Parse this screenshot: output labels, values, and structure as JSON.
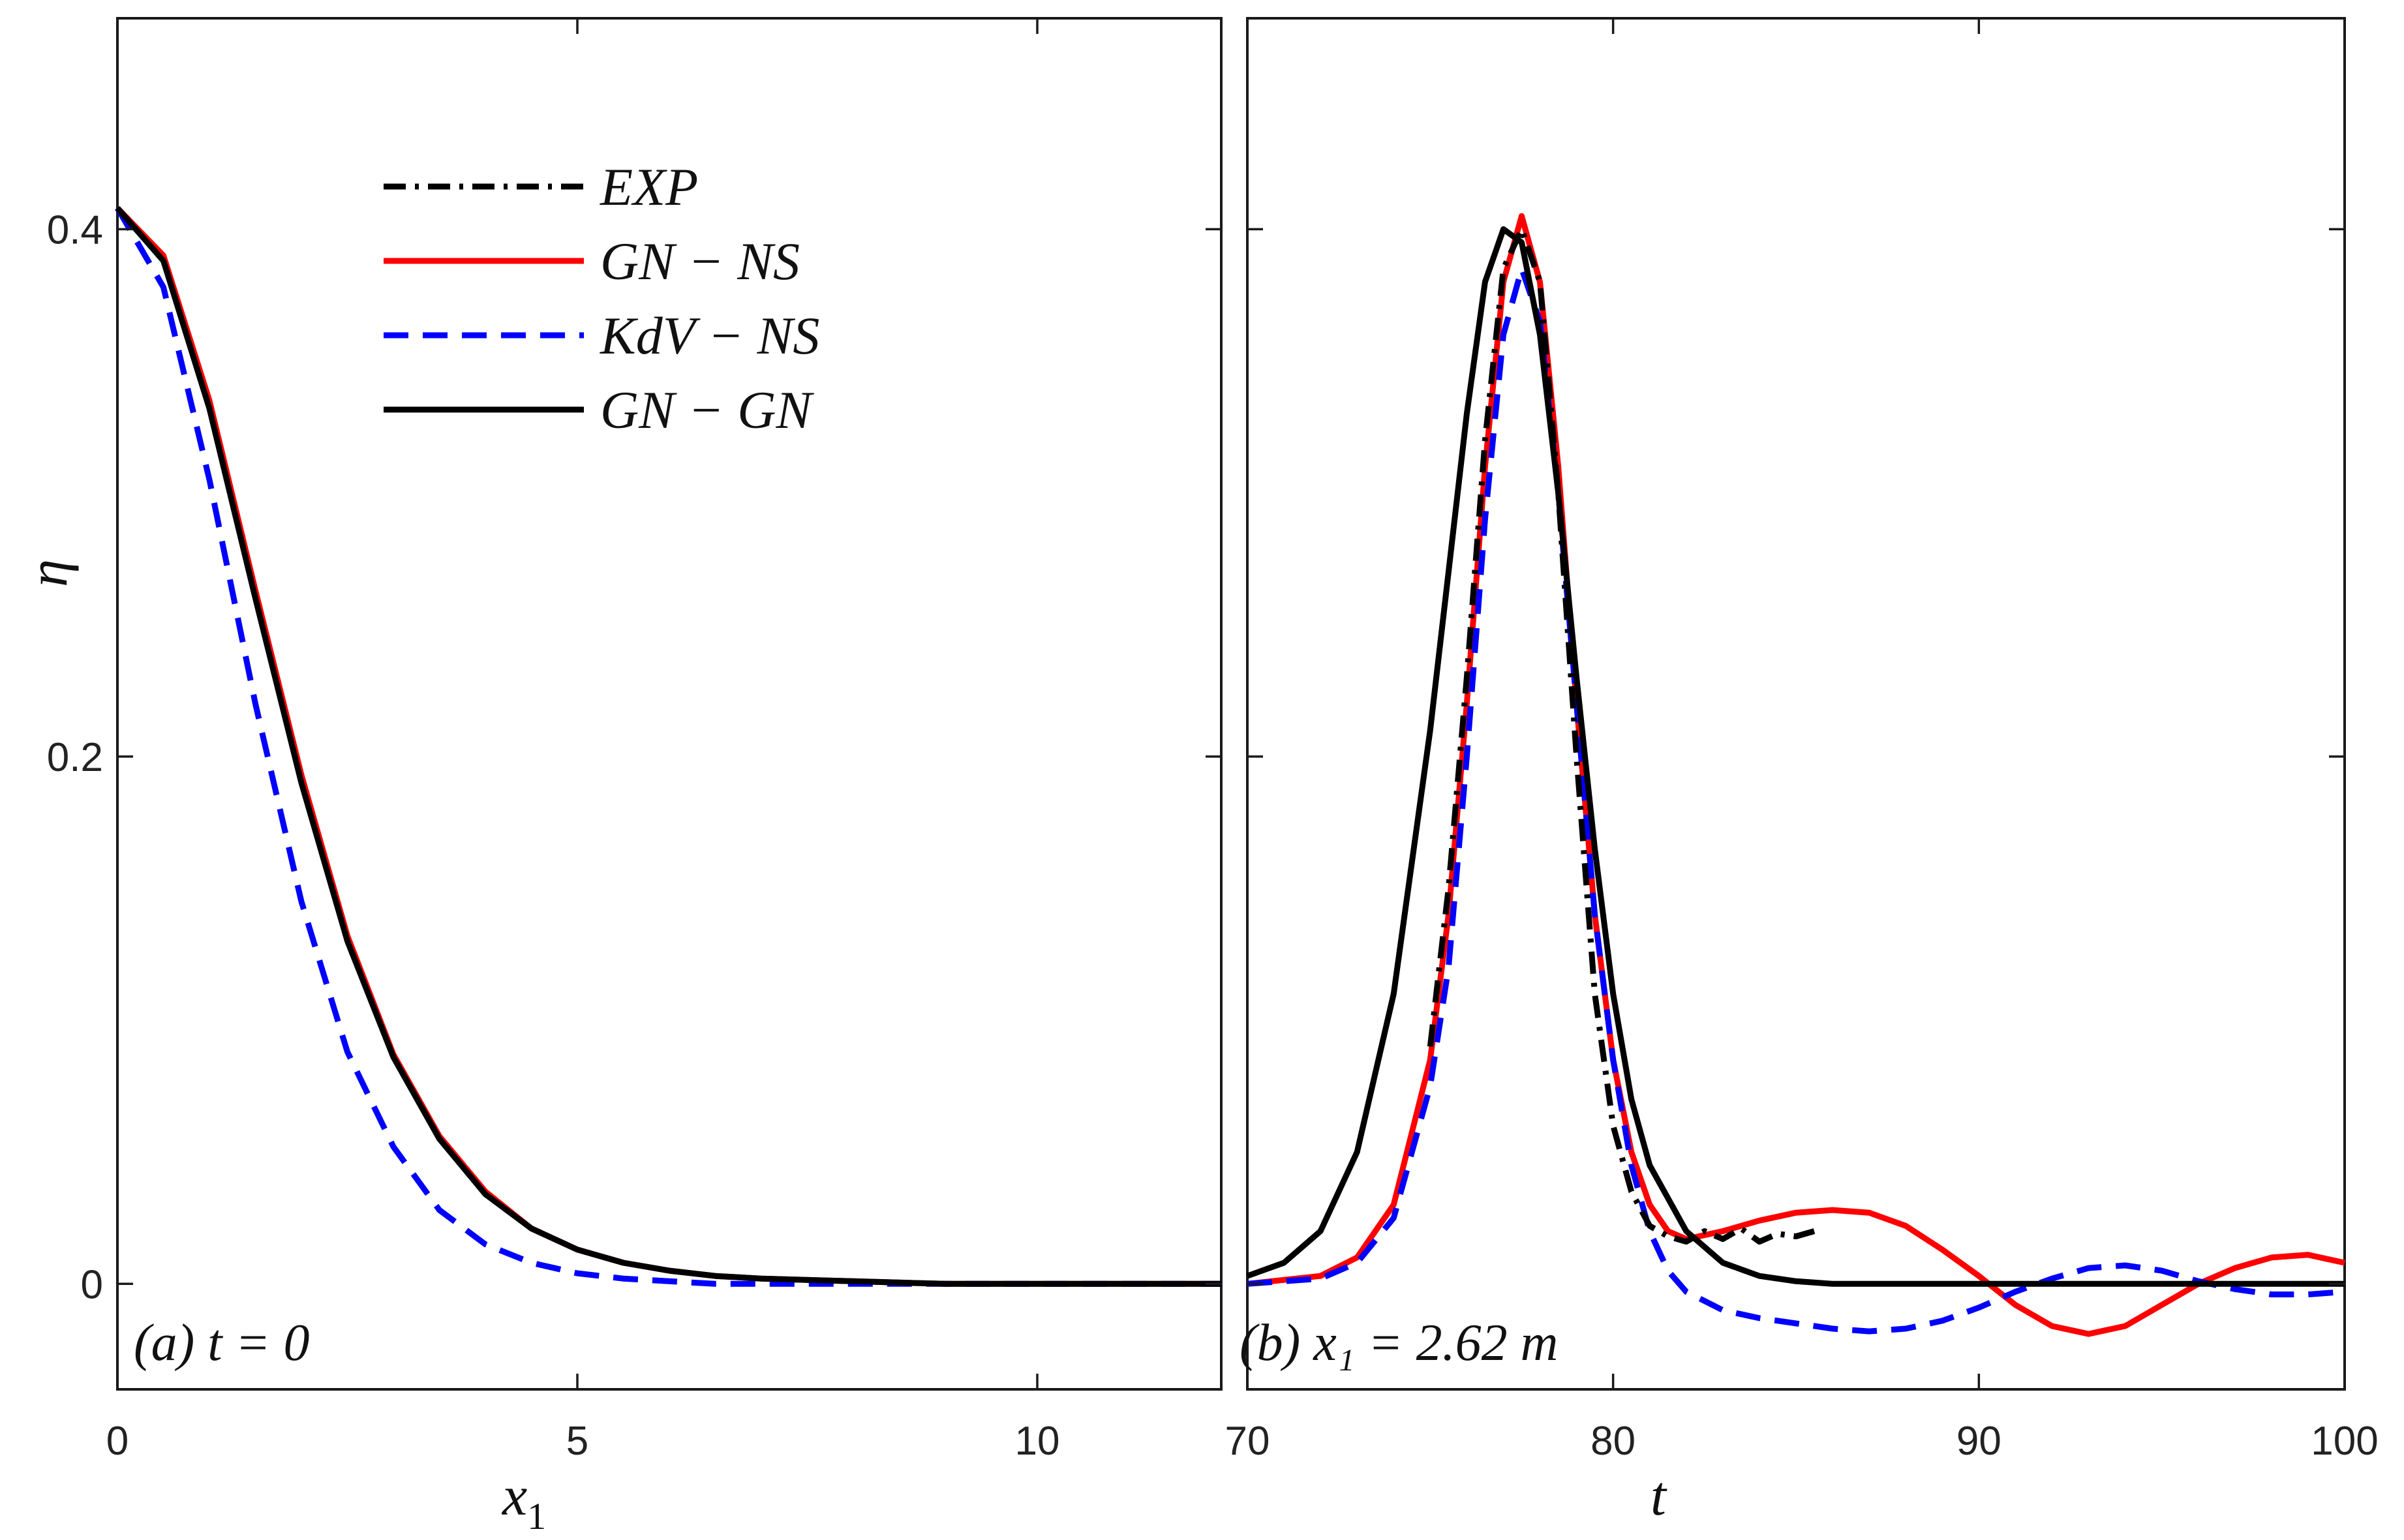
{
  "chart_data": [
    {
      "type": "line",
      "panel_label": "(a) t = 0",
      "xlabel": "x",
      "xlabel_sub": "1",
      "ylabel": "η",
      "xlim": [
        0,
        12
      ],
      "ylim": [
        -0.04,
        0.48
      ],
      "xticks": [
        {
          "value": 0,
          "label": "0"
        },
        {
          "value": 5,
          "label": "5"
        },
        {
          "value": 10,
          "label": "10"
        }
      ],
      "yticks": [
        {
          "value": 0,
          "label": "0"
        },
        {
          "value": 0.2,
          "label": "0.2"
        },
        {
          "value": 0.4,
          "label": "0.4"
        }
      ],
      "legend": [
        {
          "name": "EXP",
          "label": "EXP",
          "color": "#000000",
          "dash": "dashdot"
        },
        {
          "name": "GN-NS",
          "label": "GN − NS",
          "color": "#ff0000",
          "dash": "solid"
        },
        {
          "name": "KdV-NS",
          "label": "KdV − NS",
          "color": "#0000ff",
          "dash": "dashed"
        },
        {
          "name": "GN-GN",
          "label": "GN − GN",
          "color": "#000000",
          "dash": "solid"
        }
      ],
      "series": [
        {
          "name": "GN-NS",
          "color": "#ff0000",
          "dash": "solid",
          "x": [
            0,
            0.5,
            1,
            1.5,
            2,
            2.5,
            3,
            3.5,
            4,
            4.5,
            5,
            5.5,
            6,
            6.5,
            7,
            8,
            9,
            10,
            11,
            12
          ],
          "y": [
            0.408,
            0.39,
            0.335,
            0.263,
            0.193,
            0.132,
            0.087,
            0.056,
            0.035,
            0.021,
            0.013,
            0.008,
            0.005,
            0.003,
            0.002,
            0.001,
            0.0,
            0.0,
            0.0,
            0.0
          ]
        },
        {
          "name": "KdV-NS",
          "color": "#0000ff",
          "dash": "dashed",
          "x": [
            0,
            0.5,
            1,
            1.5,
            2,
            2.5,
            3,
            3.5,
            4,
            4.5,
            5,
            5.5,
            6,
            6.5,
            7,
            8,
            9,
            10,
            11,
            12
          ],
          "y": [
            0.408,
            0.378,
            0.305,
            0.22,
            0.145,
            0.088,
            0.052,
            0.028,
            0.015,
            0.008,
            0.004,
            0.002,
            0.001,
            0.0,
            0.0,
            0.0,
            0.0,
            0.0,
            0.0,
            0.0
          ]
        },
        {
          "name": "GN-GN",
          "color": "#000000",
          "dash": "solid",
          "x": [
            0,
            0.5,
            1,
            1.5,
            2,
            2.5,
            3,
            3.5,
            4,
            4.5,
            5,
            5.5,
            6,
            6.5,
            7,
            8,
            9,
            10,
            11,
            12
          ],
          "y": [
            0.408,
            0.388,
            0.332,
            0.26,
            0.19,
            0.13,
            0.086,
            0.055,
            0.034,
            0.021,
            0.013,
            0.008,
            0.005,
            0.003,
            0.002,
            0.001,
            0.0,
            0.0,
            0.0,
            0.0
          ]
        }
      ]
    },
    {
      "type": "line",
      "panel_label": "(b) x₁ = 2.62 m",
      "xlabel": "t",
      "xlim": [
        70,
        100
      ],
      "ylim": [
        -0.04,
        0.48
      ],
      "xticks": [
        {
          "value": 70,
          "label": "70"
        },
        {
          "value": 80,
          "label": "80"
        },
        {
          "value": 90,
          "label": "90"
        },
        {
          "value": 100,
          "label": "100"
        }
      ],
      "series": [
        {
          "name": "GN-NS",
          "color": "#ff0000",
          "dash": "solid",
          "x": [
            70,
            72,
            73,
            74,
            75,
            75.5,
            76,
            76.5,
            77,
            77.5,
            78,
            78.5,
            79,
            79.5,
            80,
            80.5,
            81,
            81.5,
            82,
            83,
            84,
            85,
            86,
            87,
            88,
            89,
            90,
            91,
            92,
            93,
            94,
            95,
            96,
            97,
            98,
            99,
            100
          ],
          "y": [
            0.0,
            0.003,
            0.01,
            0.03,
            0.085,
            0.14,
            0.22,
            0.31,
            0.38,
            0.405,
            0.38,
            0.31,
            0.22,
            0.14,
            0.085,
            0.05,
            0.03,
            0.02,
            0.017,
            0.02,
            0.024,
            0.027,
            0.028,
            0.027,
            0.022,
            0.013,
            0.003,
            -0.008,
            -0.016,
            -0.019,
            -0.016,
            -0.008,
            0.0,
            0.006,
            0.01,
            0.011,
            0.008
          ]
        },
        {
          "name": "KdV-NS",
          "color": "#0000ff",
          "dash": "dashed",
          "x": [
            70,
            72,
            73,
            74,
            75,
            75.5,
            76,
            76.5,
            77,
            77.5,
            78,
            78.5,
            79,
            79.5,
            80,
            80.5,
            81,
            81.5,
            82,
            83,
            84,
            85,
            86,
            87,
            88,
            89,
            90,
            91,
            92,
            93,
            94,
            95,
            96,
            97,
            98,
            99,
            100
          ],
          "y": [
            0.0,
            0.002,
            0.008,
            0.025,
            0.075,
            0.12,
            0.2,
            0.29,
            0.36,
            0.385,
            0.365,
            0.3,
            0.22,
            0.14,
            0.085,
            0.045,
            0.02,
            0.005,
            -0.003,
            -0.01,
            -0.013,
            -0.015,
            -0.017,
            -0.018,
            -0.017,
            -0.014,
            -0.009,
            -0.003,
            0.002,
            0.006,
            0.007,
            0.005,
            0.001,
            -0.002,
            -0.004,
            -0.004,
            -0.003
          ]
        },
        {
          "name": "GN-GN",
          "color": "#000000",
          "dash": "solid",
          "x": [
            70,
            71,
            72,
            73,
            74,
            75,
            75.5,
            76,
            76.5,
            77,
            77.5,
            78,
            78.5,
            79,
            79.5,
            80,
            80.5,
            81,
            82,
            83,
            84,
            85,
            86,
            88,
            90,
            92,
            94,
            96,
            98,
            100
          ],
          "y": [
            0.003,
            0.008,
            0.02,
            0.05,
            0.11,
            0.21,
            0.27,
            0.33,
            0.38,
            0.4,
            0.395,
            0.36,
            0.3,
            0.23,
            0.165,
            0.11,
            0.07,
            0.045,
            0.02,
            0.008,
            0.003,
            0.001,
            0.0,
            0.0,
            0.0,
            0.0,
            0.0,
            0.0,
            0.0,
            0.0
          ]
        },
        {
          "name": "EXP",
          "color": "#000000",
          "dash": "dashdot",
          "x": [
            75,
            75.5,
            76,
            76.5,
            77,
            77.5,
            78,
            78.5,
            79,
            79.5,
            80,
            80.5,
            81,
            81.5,
            82,
            82.5,
            83,
            83.5,
            84,
            84.5,
            85,
            85.5
          ],
          "y": [
            0.09,
            0.15,
            0.23,
            0.32,
            0.385,
            0.4,
            0.38,
            0.3,
            0.2,
            0.11,
            0.06,
            0.035,
            0.022,
            0.018,
            0.016,
            0.02,
            0.017,
            0.021,
            0.016,
            0.019,
            0.018,
            0.02
          ]
        }
      ]
    }
  ]
}
